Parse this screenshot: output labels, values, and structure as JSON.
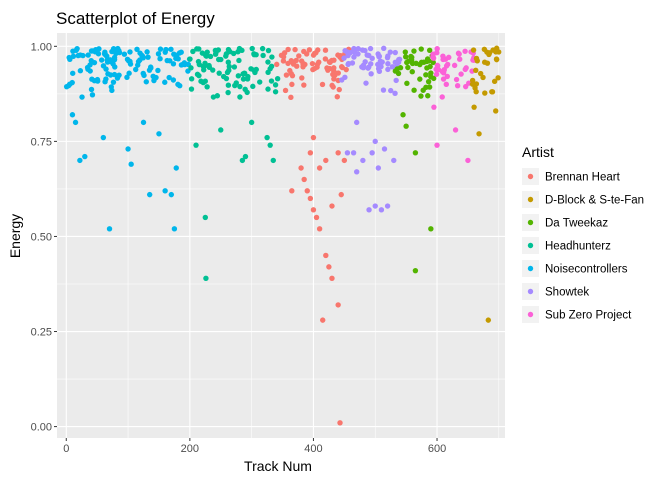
{
  "chart_data": {
    "type": "scatter",
    "title": "Scatterplot of Energy",
    "xlabel": "Track Num",
    "ylabel": "Energy",
    "xlim": [
      -15,
      710
    ],
    "ylim": [
      -0.03,
      1.035
    ],
    "x_ticks": [
      0,
      200,
      400,
      600
    ],
    "x_tick_labels": [
      "0",
      "200",
      "400",
      "600"
    ],
    "y_ticks": [
      0,
      0.25,
      0.5,
      0.75,
      1.0
    ],
    "y_tick_labels": [
      "0.00",
      "0.25",
      "0.50",
      "0.75",
      "1.00"
    ],
    "grid": true,
    "legend": {
      "title": "Artist",
      "position": "right"
    },
    "series": [
      {
        "name": "Noisecontrollers",
        "color": "#00B6EB",
        "x_range": [
          0,
          200
        ],
        "points": [
          [
            22,
            0.7
          ],
          [
            30,
            0.71
          ],
          [
            70,
            0.52
          ],
          [
            100,
            0.73
          ],
          [
            105,
            0.69
          ],
          [
            135,
            0.61
          ],
          [
            160,
            0.62
          ],
          [
            170,
            0.61
          ],
          [
            175,
            0.52
          ],
          [
            178,
            0.68
          ],
          [
            125,
            0.8
          ],
          [
            150,
            0.77
          ],
          [
            15,
            0.8
          ],
          [
            10,
            0.82
          ],
          [
            60,
            0.76
          ]
        ]
      },
      {
        "name": "Headhunterz",
        "color": "#00C094",
        "x_range": [
          200,
          345
        ],
        "points": [
          [
            225,
            0.55
          ],
          [
            226,
            0.39
          ],
          [
            210,
            0.74
          ],
          [
            285,
            0.7
          ],
          [
            290,
            0.71
          ],
          [
            325,
            0.76
          ],
          [
            330,
            0.74
          ],
          [
            335,
            0.7
          ],
          [
            250,
            0.78
          ],
          [
            300,
            0.8
          ]
        ]
      },
      {
        "name": "Brennan Heart",
        "color": "#F8766D",
        "x_range": [
          340,
          460
        ],
        "points": [
          [
            443,
            0.01
          ],
          [
            415,
            0.28
          ],
          [
            425,
            0.42
          ],
          [
            430,
            0.39
          ],
          [
            440,
            0.32
          ],
          [
            420,
            0.45
          ],
          [
            410,
            0.52
          ],
          [
            405,
            0.55
          ],
          [
            400,
            0.57
          ],
          [
            395,
            0.6
          ],
          [
            390,
            0.62
          ],
          [
            385,
            0.65
          ],
          [
            365,
            0.62
          ],
          [
            445,
            0.61
          ],
          [
            430,
            0.58
          ],
          [
            440,
            0.72
          ],
          [
            450,
            0.7
          ],
          [
            380,
            0.68
          ],
          [
            395,
            0.72
          ],
          [
            400,
            0.76
          ],
          [
            410,
            0.68
          ],
          [
            420,
            0.7
          ]
        ]
      },
      {
        "name": "Showtek",
        "color": "#A58AFF",
        "x_range": [
          445,
          540
        ],
        "points": [
          [
            490,
            0.57
          ],
          [
            500,
            0.58
          ],
          [
            510,
            0.57
          ],
          [
            520,
            0.58
          ],
          [
            470,
            0.67
          ],
          [
            480,
            0.7
          ],
          [
            465,
            0.72
          ],
          [
            455,
            0.72
          ],
          [
            495,
            0.72
          ],
          [
            505,
            0.68
          ],
          [
            515,
            0.73
          ],
          [
            530,
            0.7
          ],
          [
            500,
            0.75
          ],
          [
            470,
            0.8
          ]
        ]
      },
      {
        "name": "Da Tweekaz",
        "color": "#53B400",
        "x_range": [
          530,
          595
        ],
        "points": [
          [
            565,
            0.41
          ],
          [
            590,
            0.52
          ],
          [
            565,
            0.72
          ],
          [
            545,
            0.82
          ],
          [
            550,
            0.79
          ],
          [
            585,
            0.87
          ]
        ]
      },
      {
        "name": "Sub Zero Project",
        "color": "#FB61D7",
        "x_range": [
          592,
          660
        ],
        "points": [
          [
            595,
            0.84
          ],
          [
            600,
            0.74
          ],
          [
            630,
            0.78
          ],
          [
            650,
            0.7
          ],
          [
            615,
            0.9
          ]
        ]
      },
      {
        "name": "D-Block & S-te-Fan",
        "color": "#C49A00",
        "x_range": [
          655,
          700
        ],
        "points": [
          [
            683,
            0.28
          ],
          [
            668,
            0.77
          ],
          [
            660,
            0.84
          ],
          [
            695,
            0.83
          ]
        ]
      }
    ],
    "legend_order": [
      "Brennan Heart",
      "D-Block & S-te-Fan",
      "Da Tweekaz",
      "Headhunterz",
      "Noisecontrollers",
      "Showtek",
      "Sub Zero Project"
    ]
  }
}
